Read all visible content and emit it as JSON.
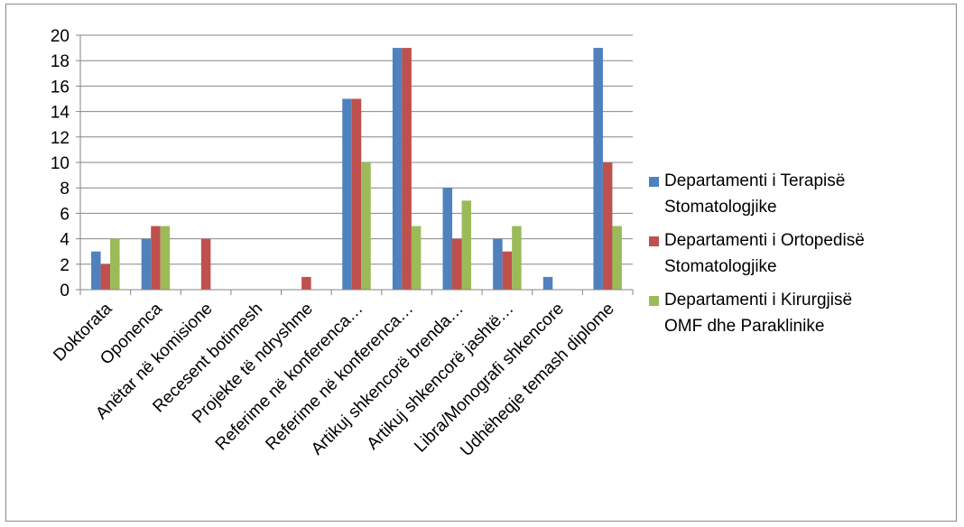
{
  "chart_data": {
    "type": "bar",
    "title": "",
    "xlabel": "",
    "ylabel": "",
    "ylim": [
      0,
      20
    ],
    "yticks": [
      0,
      2,
      4,
      6,
      8,
      10,
      12,
      14,
      16,
      18,
      20
    ],
    "grid": true,
    "legend_position": "right",
    "categories": [
      "Doktorata",
      "Oponenca",
      "Anëtar në komisione",
      "Recesent botimesh",
      "Projekte të ndryshme",
      "Referime në konferenca…",
      "Referime në konferenca…",
      "Artikuj shkencorë brenda…",
      "Artikuj shkencorë jashtë…",
      "Libra/Monografi shkencore",
      "Udhëheqje temash diplome"
    ],
    "series": [
      {
        "name_lines": [
          "Departamenti i Terapisë",
          "Stomatologjike"
        ],
        "color": "#4f81bd",
        "values": [
          3,
          4,
          0,
          0,
          0,
          15,
          19,
          8,
          4,
          1,
          19
        ]
      },
      {
        "name_lines": [
          "Departamenti i Ortopedisë",
          "Stomatologjike"
        ],
        "color": "#c0504d",
        "values": [
          2,
          5,
          4,
          0,
          1,
          15,
          19,
          4,
          3,
          0,
          10
        ]
      },
      {
        "name_lines": [
          "Departamenti i Kirurgjisë",
          "OMF dhe Paraklinike"
        ],
        "color": "#9bbb59",
        "values": [
          4,
          5,
          0,
          0,
          0,
          10,
          5,
          7,
          5,
          0,
          5
        ]
      }
    ]
  }
}
